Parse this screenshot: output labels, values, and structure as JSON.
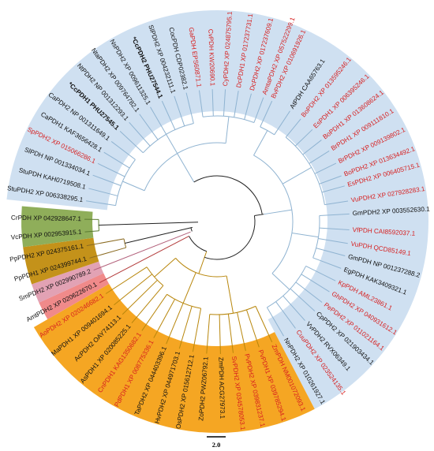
{
  "colors": {
    "blue_band": "#cfe0f1",
    "orange_band": "#f5a623",
    "green_band": "#8fae5a",
    "brown_band": "#c4921a",
    "pink_band": "#e2a2b4",
    "salmon_band": "#f08a8a",
    "red_label": "#d71f1f",
    "black_label": "#111111"
  },
  "scale_bar": {
    "label": "2.0"
  },
  "leaves": [
    {
      "label": "BvPDH2 XP 010691926.1",
      "angle": -65.5,
      "color": "red",
      "bold": false,
      "group": "blue"
    },
    {
      "label": "AtPDH CAA65763.1",
      "angle": -56.6,
      "color": "black",
      "bold": false,
      "group": "blue"
    },
    {
      "label": "BoPDH2 XP 013595246.1",
      "angle": -50.8,
      "color": "red",
      "bold": false,
      "group": "blue"
    },
    {
      "label": "EsPDH1 XP 006395246.1",
      "angle": -44.0,
      "color": "red",
      "bold": false,
      "group": "blue"
    },
    {
      "label": "BoPDH1 XP 013608624.1",
      "angle": -38.0,
      "color": "red",
      "bold": false,
      "group": "blue"
    },
    {
      "label": "BrPDH1 XP 009111810.1",
      "angle": -32.2,
      "color": "red",
      "bold": false,
      "group": "blue"
    },
    {
      "label": "BrPDH2 XP 009139802.1",
      "angle": -26.1,
      "color": "red",
      "bold": false,
      "group": "blue"
    },
    {
      "label": "BoPDH2 XP 013634492.1",
      "angle": -20.2,
      "color": "red",
      "bold": false,
      "group": "blue"
    },
    {
      "label": "EsPDH2 XP 006405715.1",
      "angle": -15.6,
      "color": "red",
      "bold": false,
      "group": "blue"
    },
    {
      "label": "VuPDH2 XP 027928283.1",
      "angle": -8.9,
      "color": "red",
      "bold": false,
      "group": "blue"
    },
    {
      "label": "GmPDH2 XP 003552630.1",
      "angle": -3.3,
      "color": "black",
      "bold": false,
      "group": "blue"
    },
    {
      "label": "VfPDH CAI8592037.1",
      "angle": 3.6,
      "color": "red",
      "bold": false,
      "group": "blue"
    },
    {
      "label": "VuPDH QCD85149.1",
      "angle": 9.5,
      "color": "red",
      "bold": false,
      "group": "blue"
    },
    {
      "label": "GmPDH NP 001237288.2",
      "angle": 15.0,
      "color": "black",
      "bold": false,
      "group": "blue"
    },
    {
      "label": "EgPDH KAK3409321.1",
      "angle": 20.7,
      "color": "black",
      "bold": false,
      "group": "blue"
    },
    {
      "label": "KpPDH AML23861.1",
      "angle": 26.6,
      "color": "red",
      "bold": false,
      "group": "blue"
    },
    {
      "label": "GhPDH2 XP 040931612.1",
      "angle": 32.0,
      "color": "red",
      "bold": false,
      "group": "blue"
    },
    {
      "label": "PePDH2 XP 011021164.1",
      "angle": 37.6,
      "color": "red",
      "bold": false,
      "group": "blue"
    },
    {
      "label": "CpPDH2 XP 021903434.1",
      "angle": 42.5,
      "color": "black",
      "bold": false,
      "group": "blue"
    },
    {
      "label": "VvPDH2 RVX06349.1",
      "angle": 48.4,
      "color": "black",
      "bold": false,
      "group": "blue"
    },
    {
      "label": "CuuPDH2 XP 023524135.1",
      "angle": 53.7,
      "color": "red",
      "bold": false,
      "group": "blue"
    },
    {
      "label": "NnPDH2 XP 010261927.1",
      "angle": 59.8,
      "color": "black",
      "bold": false,
      "group": "blue"
    },
    {
      "label": "ZmPDH NM001072093.1",
      "angle": 65.5,
      "color": "red",
      "bold": false,
      "group": "orange"
    },
    {
      "label": "PvPDH1 XP 039785294.1",
      "angle": 71.5,
      "color": "red",
      "bold": false,
      "group": "orange"
    },
    {
      "label": "PvPDH2 XP 039831237.1",
      "angle": 77.5,
      "color": "red",
      "bold": false,
      "group": "orange"
    },
    {
      "label": "SvPDH2 XP 034578053.1",
      "angle": 83.0,
      "color": "red",
      "bold": false,
      "group": "orange"
    },
    {
      "label": "ZmPDH ACG27973.1",
      "angle": 88.5,
      "color": "black",
      "bold": false,
      "group": "orange"
    },
    {
      "label": "ZoPDH2 PWZ06792.1",
      "angle": 94.5,
      "color": "black",
      "bold": false,
      "group": "orange"
    },
    {
      "label": "OsPDH2 XP 015612712.1",
      "angle": 100.5,
      "color": "black",
      "bold": false,
      "group": "orange"
    },
    {
      "label": "HvPDH2 XP 044971703.1",
      "angle": 106.5,
      "color": "black",
      "bold": false,
      "group": "orange"
    },
    {
      "label": "TaPDH2 XP 044403396.1",
      "angle": 112.5,
      "color": "black",
      "bold": false,
      "group": "orange"
    },
    {
      "label": "PdPDH1 XP 008775336.1",
      "angle": 118.5,
      "color": "red",
      "bold": false,
      "group": "orange"
    },
    {
      "label": "CnPDH1 KAG1350682.1",
      "angle": 124.5,
      "color": "red",
      "bold": false,
      "group": "orange"
    },
    {
      "label": "AsPDH1 XP 020085225.1",
      "angle": 130.0,
      "color": "black",
      "bold": false,
      "group": "orange"
    },
    {
      "label": "AcPDH2 OAY74113.1",
      "angle": 135.5,
      "color": "black",
      "bold": false,
      "group": "orange"
    },
    {
      "label": "MaPDH1 XP 009401694.1",
      "angle": 141.0,
      "color": "black",
      "bold": false,
      "group": "orange"
    },
    {
      "label": "AoPDH2 XP 020246682.1",
      "angle": 147.0,
      "color": "red",
      "bold": false,
      "group": "orange"
    },
    {
      "label": "AmtPDH2 XP 020622670.1",
      "angle": 152.5,
      "color": "black",
      "bold": false,
      "group": "salmon"
    },
    {
      "label": "SmPDH2 XP 002990789.2",
      "angle": 158.5,
      "color": "black",
      "bold": false,
      "group": "pink"
    },
    {
      "label": "PpPDH1 XP 024399744.1",
      "angle": 164.0,
      "color": "black",
      "bold": false,
      "group": "brown"
    },
    {
      "label": "PpPDH2 XP 024375161.1",
      "angle": 169.5,
      "color": "black",
      "bold": false,
      "group": "brown"
    },
    {
      "label": "VcPDH XP 002953915.1",
      "angle": 175.5,
      "color": "black",
      "bold": false,
      "group": "green"
    },
    {
      "label": "CrPDH XP 042928647.1",
      "angle": 181.0,
      "color": "black",
      "bold": false,
      "group": "green"
    },
    {
      "label": "StuPDH2 XP 006338295.1",
      "angle": 189.0,
      "color": "black",
      "bold": false,
      "group": "blue"
    },
    {
      "label": "StuPDH KAH0719508.1",
      "angle": 194.5,
      "color": "black",
      "bold": false,
      "group": "blue"
    },
    {
      "label": "SlPDH NP 001334034.1",
      "angle": 200.5,
      "color": "black",
      "bold": false,
      "group": "blue"
    },
    {
      "label": "SpPDH2 XP 015066286.1",
      "angle": 206.0,
      "color": "red",
      "bold": false,
      "group": "blue"
    },
    {
      "label": "CaPDH1 KAF3656428.1",
      "angle": 211.5,
      "color": "black",
      "bold": false,
      "group": "blue"
    },
    {
      "label": "CaPDH2 NP 001311649.1",
      "angle": 217.2,
      "color": "black",
      "bold": false,
      "group": "blue"
    },
    {
      "label": "*CcPDH1 PHU27545.1",
      "angle": 223.0,
      "color": "black",
      "bold": true,
      "group": "blue"
    },
    {
      "label": "NtPDH2 NP 001312293.1",
      "angle": 228.5,
      "color": "black",
      "bold": false,
      "group": "blue"
    },
    {
      "label": "NtaPDH2 XP 009764782.1",
      "angle": 234.2,
      "color": "black",
      "bold": false,
      "group": "blue"
    },
    {
      "label": "NsPDH2 XP 009611325.1",
      "angle": 239.8,
      "color": "black",
      "bold": false,
      "group": "blue"
    },
    {
      "label": "*CcPDH2 PHU27544.1",
      "angle": 245.5,
      "color": "black",
      "bold": true,
      "group": "blue"
    },
    {
      "label": "SlPDH2 XP 004232111.1",
      "angle": 251.2,
      "color": "black",
      "bold": false,
      "group": "blue"
    },
    {
      "label": "CocPDH CDP02382.1",
      "angle": 256.6,
      "color": "black",
      "bold": false,
      "group": "blue"
    },
    {
      "label": "GaPDH EPS60871.1",
      "angle": 262.3,
      "color": "red",
      "bold": false,
      "group": "blue"
    },
    {
      "label": "CvPDH KW20690.1",
      "angle": 268.0,
      "color": "red",
      "bold": false,
      "group": "blue"
    },
    {
      "label": "CyPDH2 XP 024875795.1",
      "angle": 273.6,
      "color": "red",
      "bold": false,
      "group": "blue"
    },
    {
      "label": "DcPDH1 XP 017237731.1",
      "angle": 279.3,
      "color": "red",
      "bold": false,
      "group": "blue"
    },
    {
      "label": "DcPDH2 XP 017237609.1",
      "angle": 285.0,
      "color": "red",
      "bold": false,
      "group": "blue"
    },
    {
      "label": "AmtaPDH2 XP 057522299.1",
      "angle": 290.5,
      "color": "red",
      "bold": false,
      "group": "blue"
    }
  ]
}
